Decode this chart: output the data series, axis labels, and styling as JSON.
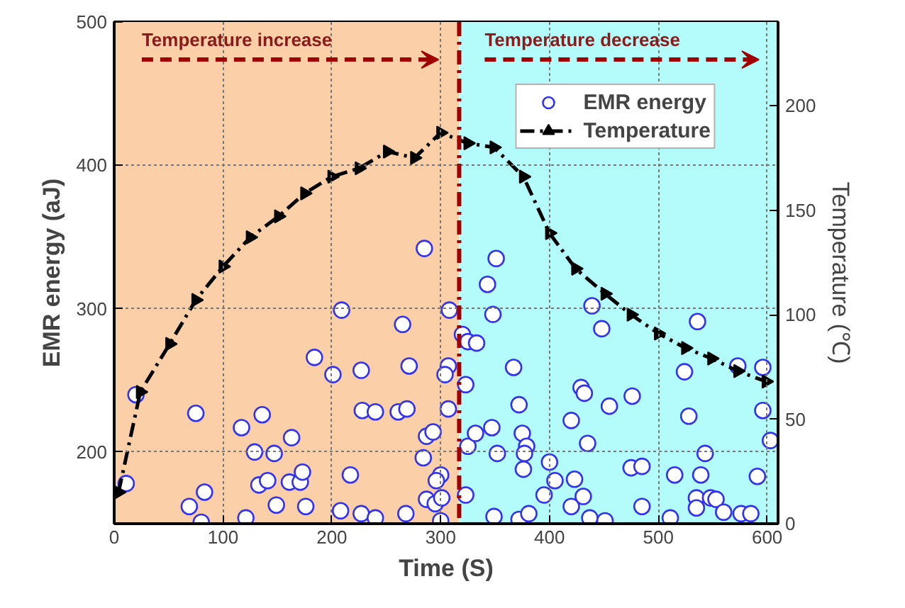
{
  "chart_data": {
    "type": "scatter",
    "xlabel": "Time (S)",
    "ylabel": "EMR energy (aJ)",
    "y2label": "Temperature (℃)",
    "xlim": [
      0,
      610
    ],
    "xticks": [
      0,
      100,
      200,
      300,
      400,
      500,
      600
    ],
    "ylim": [
      150,
      500
    ],
    "yticks": [
      200,
      300,
      400,
      500
    ],
    "y2lim": [
      0,
      240
    ],
    "y2ticks": [
      0,
      50,
      100,
      150,
      200
    ],
    "grid": true,
    "legend": "top right",
    "bands": [
      {
        "axis": "x",
        "from": 0,
        "to": 317,
        "label": "Temperature increase",
        "color": "#fbd0a8"
      },
      {
        "axis": "x",
        "from": 317,
        "to": 610,
        "label": "Temperature decrease",
        "color": "#b4fcfc"
      }
    ],
    "ref_lines": [
      {
        "axis": "x",
        "value": 317,
        "color": "#a00000",
        "line_style": "dashed"
      }
    ],
    "series": [
      {
        "name": "EMR energy",
        "marker": "circle",
        "color": "#3333ee",
        "x": [
          11,
          20,
          69,
          80,
          83,
          75,
          117,
          121,
          136,
          129,
          147,
          133,
          141,
          149,
          163,
          161,
          171,
          173,
          176,
          184,
          201,
          209,
          208,
          217,
          227,
          228,
          227,
          240,
          240,
          261,
          269,
          265,
          271,
          268,
          285,
          284,
          287,
          293,
          287,
          295,
          300,
          296,
          301,
          300,
          308,
          307,
          304,
          307,
          320,
          325,
          323,
          325,
          323,
          333,
          351,
          343,
          348,
          332,
          347,
          352,
          349,
          367,
          372,
          375,
          379,
          377,
          376,
          372,
          381,
          400,
          405,
          395,
          420,
          423,
          420,
          431,
          429,
          432,
          435,
          439,
          448,
          437,
          451,
          455,
          476,
          475,
          485,
          485,
          511,
          515,
          524,
          528,
          536,
          539,
          543,
          535,
          535,
          548,
          553,
          560,
          573,
          576,
          585,
          596,
          596,
          603,
          591
        ],
        "values": [
          178,
          240,
          162,
          151,
          172,
          227,
          217,
          154,
          226,
          200,
          199,
          177,
          180,
          163,
          210,
          179,
          179,
          186,
          162,
          266,
          254,
          299,
          159,
          184,
          257,
          229,
          157,
          228,
          154,
          228,
          230,
          289,
          260,
          157,
          342,
          196,
          211,
          214,
          167,
          164,
          184,
          180,
          168,
          152,
          299,
          260,
          254,
          230,
          282,
          277,
          247,
          204,
          170,
          276,
          335,
          317,
          296,
          213,
          217,
          199,
          155,
          259,
          233,
          213,
          204,
          199,
          188,
          153,
          157,
          193,
          180,
          170,
          222,
          181,
          162,
          169,
          245,
          241,
          206,
          302,
          286,
          154,
          152,
          232,
          239,
          189,
          190,
          162,
          154,
          184,
          256,
          225,
          291,
          184,
          199,
          168,
          161,
          168,
          167,
          158,
          260,
          157,
          157,
          259,
          229,
          208,
          183
        ]
      },
      {
        "name": "Temperature",
        "type": "line",
        "axis": "y2",
        "marker": "triangle",
        "line_style": "dashed",
        "color": "#000000",
        "x": [
          4,
          24,
          51,
          75,
          100,
          125,
          151,
          175,
          200,
          225,
          251,
          276,
          300,
          325,
          349,
          376,
          400,
          424,
          451,
          475,
          500,
          525,
          549,
          573,
          599
        ],
        "values": [
          15,
          63,
          86,
          107,
          123,
          137,
          147,
          158,
          166,
          170,
          178,
          175,
          187,
          182,
          180,
          166,
          139,
          122,
          110,
          100,
          91,
          84,
          79,
          73,
          68
        ]
      }
    ]
  }
}
